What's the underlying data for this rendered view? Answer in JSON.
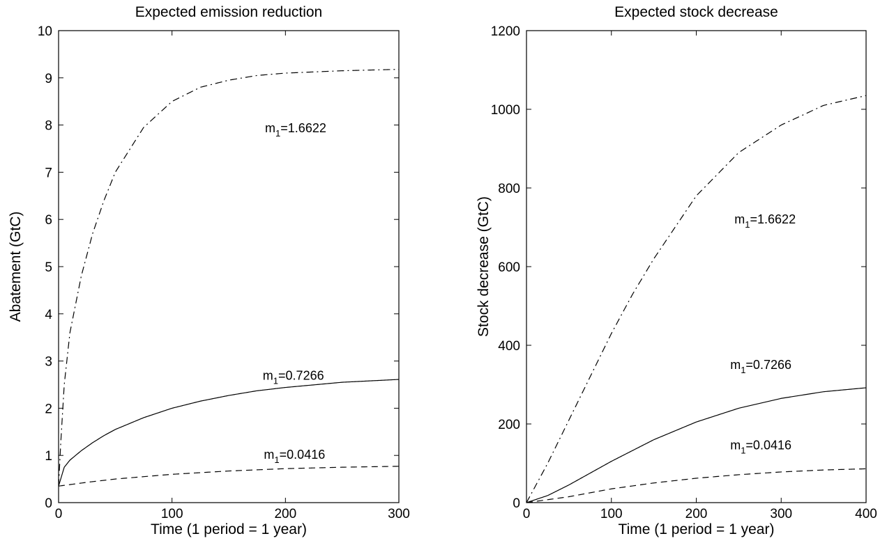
{
  "chart_data": [
    {
      "type": "line",
      "title": "Expected emission reduction",
      "xlabel": "Time (1 period = 1 year)",
      "ylabel": "Abatement (GtC)",
      "xlim": [
        0,
        300
      ],
      "ylim": [
        0,
        10
      ],
      "xticks": [
        0,
        100,
        200,
        300
      ],
      "yticks": [
        0,
        1,
        2,
        3,
        4,
        5,
        6,
        7,
        8,
        9,
        10
      ],
      "grid": false,
      "series": [
        {
          "label": "m1=1.6622",
          "style": "dashdot",
          "x": [
            0,
            2,
            5,
            10,
            20,
            30,
            40,
            50,
            75,
            100,
            125,
            150,
            175,
            200,
            250,
            300
          ],
          "y": [
            0.35,
            1.3,
            2.5,
            3.6,
            4.8,
            5.7,
            6.4,
            7.0,
            7.95,
            8.5,
            8.8,
            8.95,
            9.05,
            9.1,
            9.15,
            9.18
          ]
        },
        {
          "label": "m1=0.7266",
          "style": "solid",
          "x": [
            0,
            5,
            10,
            20,
            30,
            40,
            50,
            75,
            100,
            125,
            150,
            175,
            200,
            250,
            300
          ],
          "y": [
            0.35,
            0.75,
            0.9,
            1.1,
            1.27,
            1.42,
            1.55,
            1.8,
            2.0,
            2.15,
            2.27,
            2.37,
            2.44,
            2.55,
            2.61
          ]
        },
        {
          "label": "m1=0.0416",
          "style": "dashed",
          "x": [
            0,
            25,
            50,
            100,
            150,
            200,
            250,
            300
          ],
          "y": [
            0.35,
            0.43,
            0.5,
            0.6,
            0.67,
            0.72,
            0.75,
            0.77
          ]
        }
      ],
      "annotations": [
        {
          "text": "m",
          "sub": "1",
          "rest": "=1.6622",
          "x": 182,
          "y": 7.85
        },
        {
          "text": "m",
          "sub": "1",
          "rest": "=0.7266",
          "x": 180,
          "y": 2.6
        },
        {
          "text": "m",
          "sub": "1",
          "rest": "=0.0416",
          "x": 181,
          "y": 0.93
        }
      ]
    },
    {
      "type": "line",
      "title": "Expected stock decrease",
      "xlabel": "Time (1 period = 1 year)",
      "ylabel": "Stock decrease (GtC)",
      "xlim": [
        0,
        400
      ],
      "ylim": [
        0,
        1200
      ],
      "xticks": [
        0,
        100,
        200,
        300,
        400
      ],
      "yticks": [
        0,
        200,
        400,
        600,
        800,
        1000,
        1200
      ],
      "grid": false,
      "series": [
        {
          "label": "m1=1.6622",
          "style": "dashdot",
          "x": [
            0,
            25,
            50,
            75,
            100,
            125,
            150,
            175,
            200,
            250,
            300,
            350,
            400
          ],
          "y": [
            0,
            100,
            210,
            320,
            430,
            530,
            620,
            700,
            780,
            890,
            960,
            1010,
            1035
          ]
        },
        {
          "label": "m1=0.7266",
          "style": "solid",
          "x": [
            0,
            25,
            50,
            75,
            100,
            150,
            200,
            250,
            300,
            350,
            400
          ],
          "y": [
            0,
            18,
            45,
            75,
            105,
            160,
            205,
            240,
            265,
            282,
            292
          ]
        },
        {
          "label": "m1=0.0416",
          "style": "dashed",
          "x": [
            0,
            50,
            100,
            150,
            200,
            250,
            300,
            350,
            400
          ],
          "y": [
            0,
            15,
            35,
            50,
            62,
            71,
            78,
            83,
            86
          ]
        }
      ],
      "annotations": [
        {
          "text": "m",
          "sub": "1",
          "rest": "=1.6622",
          "x": 245,
          "y": 710
        },
        {
          "text": "m",
          "sub": "1",
          "rest": "=0.7266",
          "x": 240,
          "y": 340
        },
        {
          "text": "m",
          "sub": "1",
          "rest": "=0.0416",
          "x": 240,
          "y": 135
        }
      ]
    }
  ]
}
